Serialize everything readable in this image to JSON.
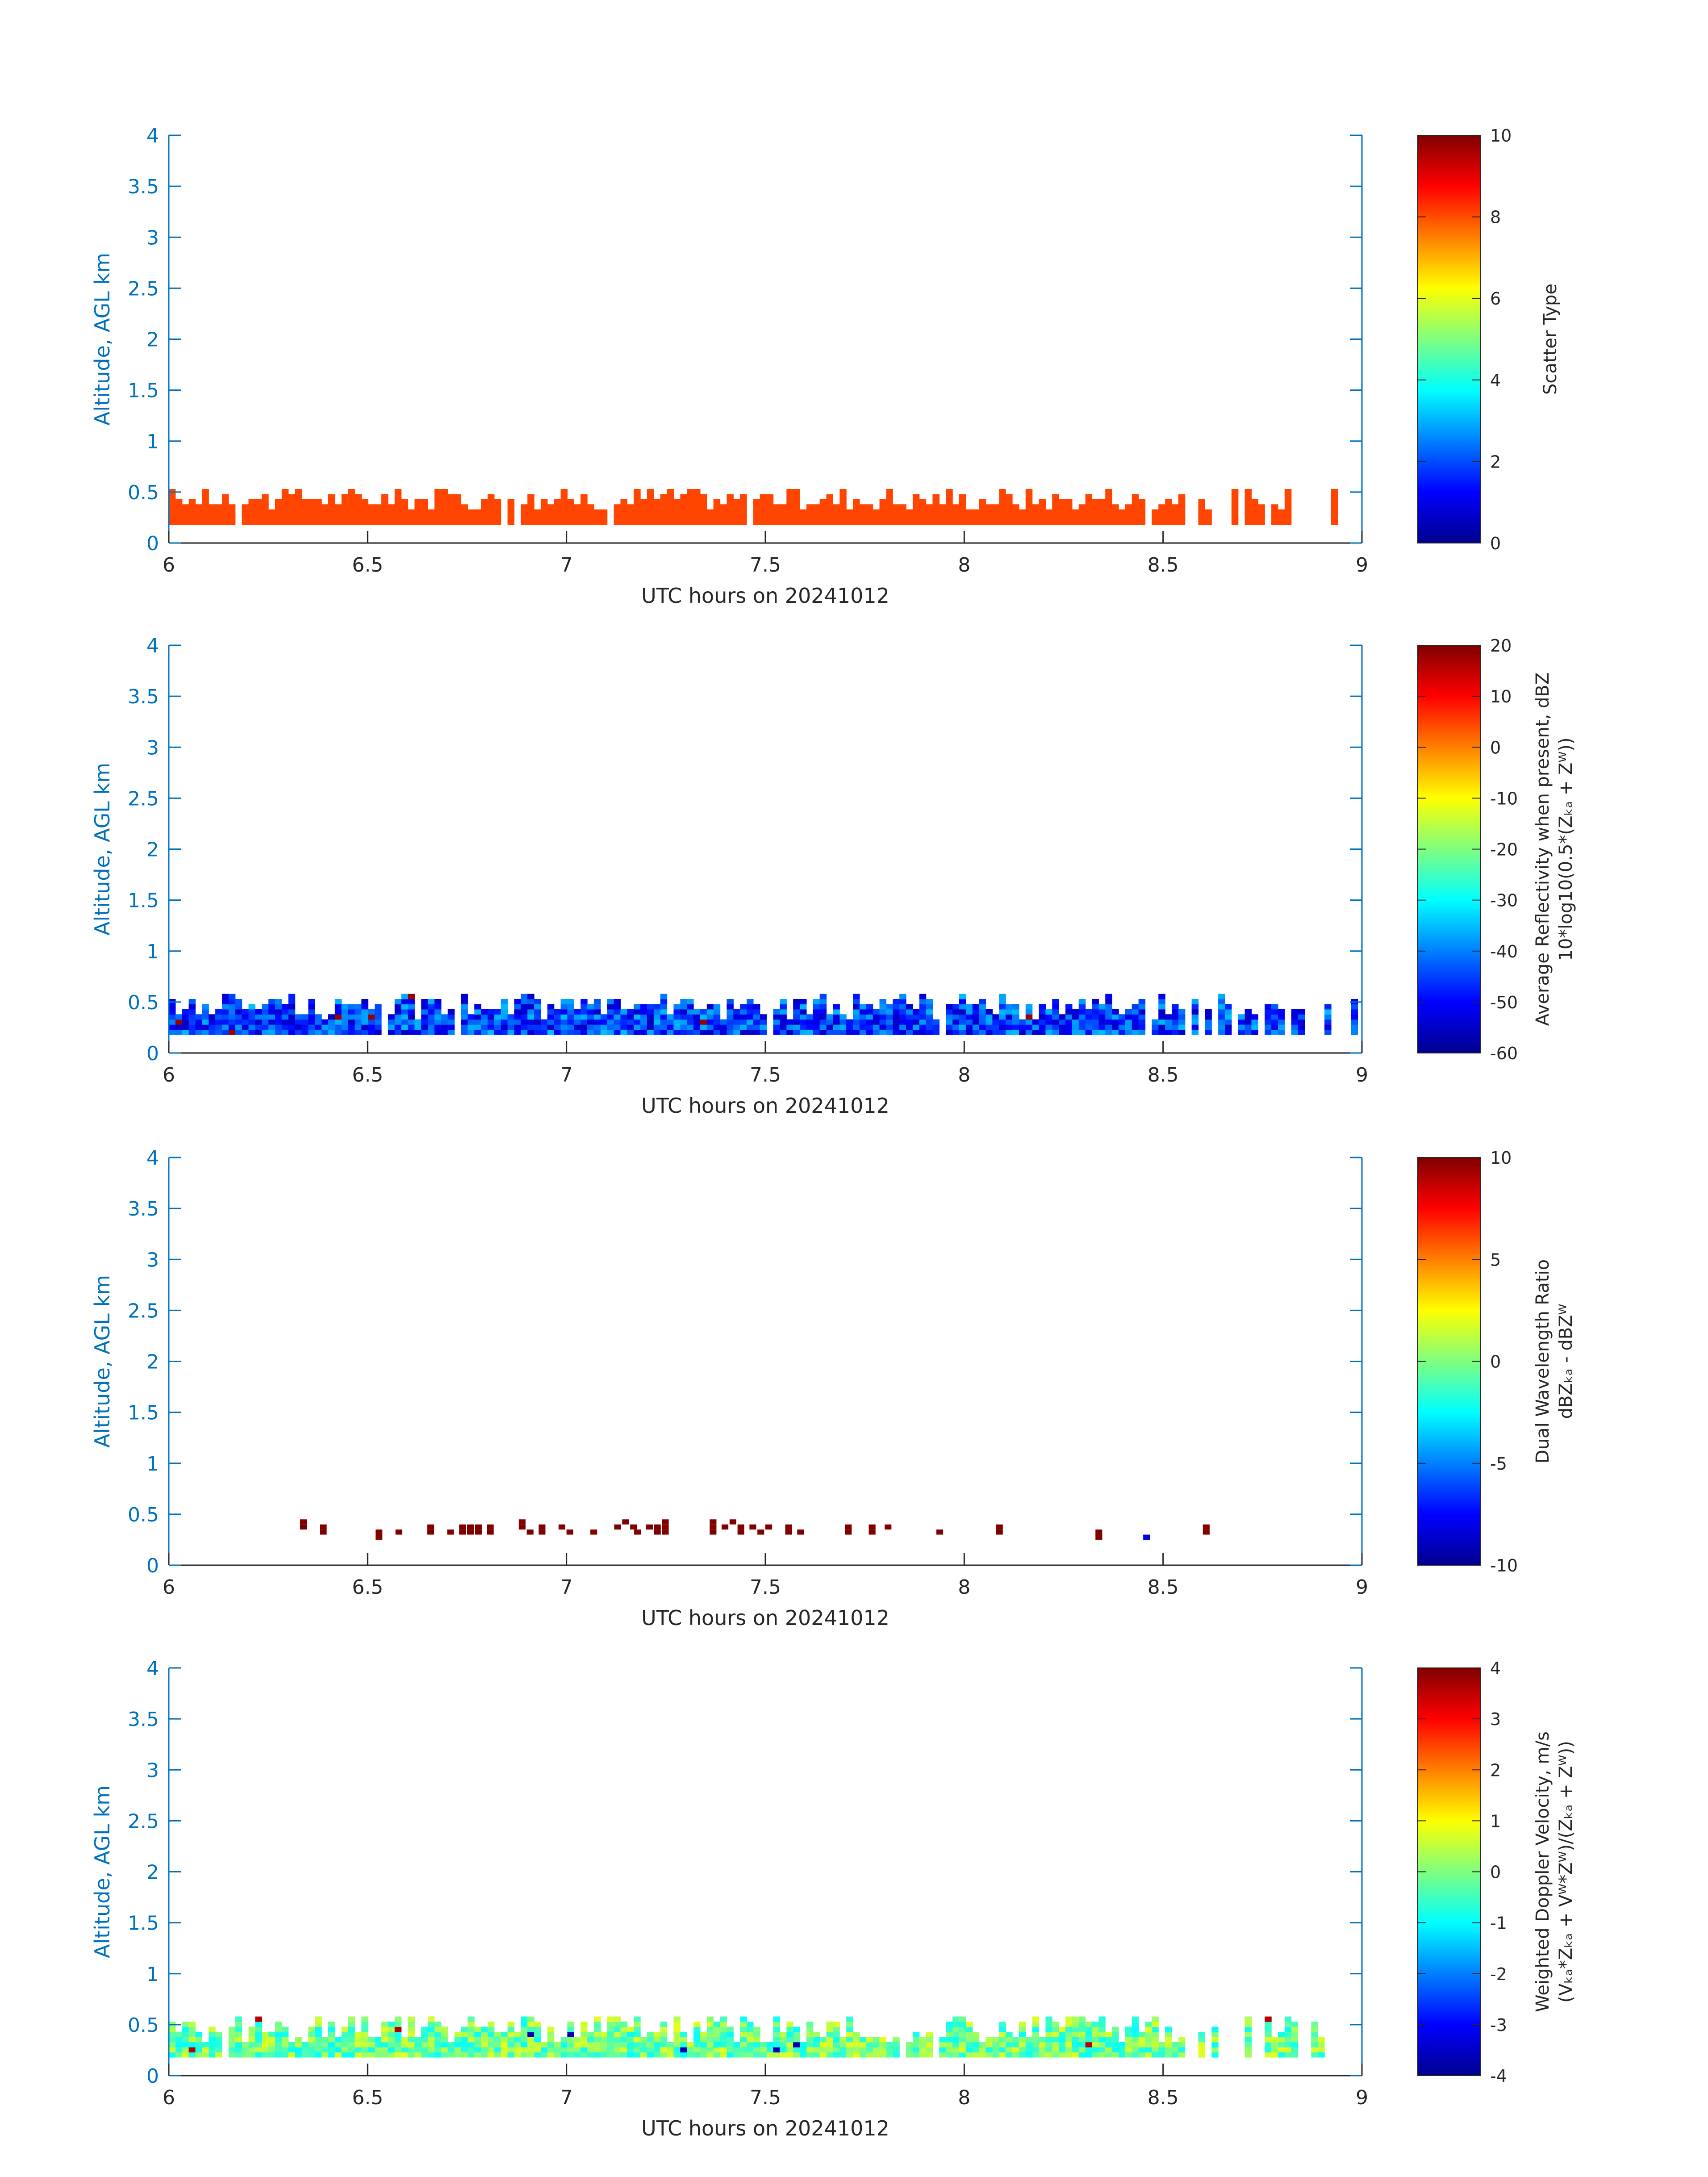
{
  "figure": {
    "background": "#ffffff",
    "axis_color": "#0072bd",
    "text_color": "#262626"
  },
  "chart_data": [
    {
      "type": "heatmap",
      "title": "",
      "xlabel": "UTC hours on 20241012",
      "ylabel": "Altitude, AGL km",
      "xlim": [
        6,
        9
      ],
      "ylim": [
        0,
        4
      ],
      "xticks": [
        "6",
        "6.5",
        "7",
        "7.5",
        "8",
        "8.5",
        "9"
      ],
      "yticks": [
        "0",
        "0.5",
        "1",
        "1.5",
        "2",
        "2.5",
        "3",
        "3.5",
        "4"
      ],
      "colorbar": {
        "label_lines": [
          "Scatter Type"
        ],
        "range": [
          0,
          10
        ],
        "ticks": [
          "0",
          "2",
          "4",
          "6",
          "8",
          "10"
        ]
      },
      "field": {
        "kind": "scatter_type",
        "constant_value": 8,
        "cell_color": "#ff4500",
        "time_step_hours": 0.0167,
        "bin_height_km": 0.05,
        "base_km": 0.18,
        "top_km_range": [
          0.3,
          0.52
        ],
        "gaps_after_hour": 8.55
      }
    },
    {
      "type": "heatmap",
      "title": "",
      "xlabel": "UTC hours on 20241012",
      "ylabel": "Altitude, AGL km",
      "xlim": [
        6,
        9
      ],
      "ylim": [
        0,
        4
      ],
      "xticks": [
        "6",
        "6.5",
        "7",
        "7.5",
        "8",
        "8.5",
        "9"
      ],
      "yticks": [
        "0",
        "0.5",
        "1",
        "1.5",
        "2",
        "2.5",
        "3",
        "3.5",
        "4"
      ],
      "colorbar": {
        "label_lines": [
          "Average Reflectivity when present, dBZ",
          "10*log10(0.5*(Zₖₐ + Zᵂ))"
        ],
        "range": [
          -60,
          20
        ],
        "ticks": [
          "-60",
          "-50",
          "-40",
          "-30",
          "-20",
          "-10",
          "0",
          "10",
          "20"
        ]
      },
      "field": {
        "kind": "reflectivity",
        "typical_range_dbz": [
          -55,
          -35
        ],
        "time_step_hours": 0.0167,
        "bin_height_km": 0.05,
        "base_km": 0.18,
        "top_km_range": [
          0.3,
          0.55
        ],
        "gaps_after_hour": 8.55
      }
    },
    {
      "type": "heatmap",
      "title": "",
      "xlabel": "UTC hours on 20241012",
      "ylabel": "Altitude, AGL km",
      "xlim": [
        6,
        9
      ],
      "ylim": [
        0,
        4
      ],
      "xticks": [
        "6",
        "6.5",
        "7",
        "7.5",
        "8",
        "8.5",
        "9"
      ],
      "yticks": [
        "0",
        "0.5",
        "1",
        "1.5",
        "2",
        "2.5",
        "3",
        "3.5",
        "4"
      ],
      "colorbar": {
        "label_lines": [
          "Dual Wavelength Ratio",
          "dBZₖₐ - dBZᵂ"
        ],
        "range": [
          -10,
          10
        ],
        "ticks": [
          "-10",
          "-5",
          "0",
          "5",
          "10"
        ]
      },
      "field": {
        "kind": "dual_wavelength_ratio",
        "cells": [
          {
            "t": 6.33,
            "z": 0.45,
            "v": 10
          },
          {
            "t": 6.33,
            "z": 0.4,
            "v": 10
          },
          {
            "t": 6.38,
            "z": 0.4,
            "v": 10
          },
          {
            "t": 6.38,
            "z": 0.35,
            "v": 10
          },
          {
            "t": 6.52,
            "z": 0.35,
            "v": 10
          },
          {
            "t": 6.52,
            "z": 0.3,
            "v": 10
          },
          {
            "t": 6.57,
            "z": 0.35,
            "v": 10
          },
          {
            "t": 6.65,
            "z": 0.4,
            "v": 10
          },
          {
            "t": 6.65,
            "z": 0.35,
            "v": 10
          },
          {
            "t": 6.7,
            "z": 0.35,
            "v": 10
          },
          {
            "t": 6.73,
            "z": 0.4,
            "v": 10
          },
          {
            "t": 6.73,
            "z": 0.35,
            "v": 10
          },
          {
            "t": 6.75,
            "z": 0.4,
            "v": 10
          },
          {
            "t": 6.75,
            "z": 0.35,
            "v": 10
          },
          {
            "t": 6.77,
            "z": 0.4,
            "v": 10
          },
          {
            "t": 6.77,
            "z": 0.35,
            "v": 10
          },
          {
            "t": 6.8,
            "z": 0.4,
            "v": 10
          },
          {
            "t": 6.8,
            "z": 0.35,
            "v": 10
          },
          {
            "t": 6.88,
            "z": 0.45,
            "v": 10
          },
          {
            "t": 6.88,
            "z": 0.4,
            "v": 10
          },
          {
            "t": 6.9,
            "z": 0.35,
            "v": 10
          },
          {
            "t": 6.93,
            "z": 0.4,
            "v": 10
          },
          {
            "t": 6.93,
            "z": 0.35,
            "v": 10
          },
          {
            "t": 6.98,
            "z": 0.4,
            "v": 10
          },
          {
            "t": 7.0,
            "z": 0.35,
            "v": 10
          },
          {
            "t": 7.06,
            "z": 0.35,
            "v": 10
          },
          {
            "t": 7.12,
            "z": 0.4,
            "v": 10
          },
          {
            "t": 7.14,
            "z": 0.45,
            "v": 10
          },
          {
            "t": 7.16,
            "z": 0.4,
            "v": 10
          },
          {
            "t": 7.17,
            "z": 0.35,
            "v": 10
          },
          {
            "t": 7.2,
            "z": 0.4,
            "v": 10
          },
          {
            "t": 7.22,
            "z": 0.4,
            "v": 10
          },
          {
            "t": 7.22,
            "z": 0.35,
            "v": 10
          },
          {
            "t": 7.24,
            "z": 0.45,
            "v": 10
          },
          {
            "t": 7.24,
            "z": 0.4,
            "v": 10
          },
          {
            "t": 7.24,
            "z": 0.35,
            "v": 10
          },
          {
            "t": 7.36,
            "z": 0.45,
            "v": 10
          },
          {
            "t": 7.36,
            "z": 0.4,
            "v": 10
          },
          {
            "t": 7.36,
            "z": 0.35,
            "v": 10
          },
          {
            "t": 7.39,
            "z": 0.4,
            "v": 10
          },
          {
            "t": 7.41,
            "z": 0.45,
            "v": 10
          },
          {
            "t": 7.43,
            "z": 0.4,
            "v": 10
          },
          {
            "t": 7.43,
            "z": 0.35,
            "v": 10
          },
          {
            "t": 7.46,
            "z": 0.4,
            "v": 10
          },
          {
            "t": 7.48,
            "z": 0.35,
            "v": 10
          },
          {
            "t": 7.5,
            "z": 0.4,
            "v": 10
          },
          {
            "t": 7.55,
            "z": 0.4,
            "v": 10
          },
          {
            "t": 7.55,
            "z": 0.35,
            "v": 10
          },
          {
            "t": 7.58,
            "z": 0.35,
            "v": 10
          },
          {
            "t": 7.7,
            "z": 0.4,
            "v": 10
          },
          {
            "t": 7.7,
            "z": 0.35,
            "v": 10
          },
          {
            "t": 7.76,
            "z": 0.4,
            "v": 10
          },
          {
            "t": 7.76,
            "z": 0.35,
            "v": 10
          },
          {
            "t": 7.8,
            "z": 0.4,
            "v": 10
          },
          {
            "t": 7.93,
            "z": 0.35,
            "v": 10
          },
          {
            "t": 8.08,
            "z": 0.4,
            "v": 10
          },
          {
            "t": 8.08,
            "z": 0.35,
            "v": 10
          },
          {
            "t": 8.33,
            "z": 0.35,
            "v": 10
          },
          {
            "t": 8.33,
            "z": 0.3,
            "v": 10
          },
          {
            "t": 8.45,
            "z": 0.3,
            "v": -8
          },
          {
            "t": 8.6,
            "z": 0.4,
            "v": 10
          },
          {
            "t": 8.6,
            "z": 0.35,
            "v": 10
          }
        ]
      }
    },
    {
      "type": "heatmap",
      "title": "",
      "xlabel": "UTC hours on 20241012",
      "ylabel": "Altitude, AGL km",
      "xlim": [
        6,
        9
      ],
      "ylim": [
        0,
        4
      ],
      "xticks": [
        "6",
        "6.5",
        "7",
        "7.5",
        "8",
        "8.5",
        "9"
      ],
      "yticks": [
        "0",
        "0.5",
        "1",
        "1.5",
        "2",
        "2.5",
        "3",
        "3.5",
        "4"
      ],
      "colorbar": {
        "label_lines": [
          "Weighted Doppler Velocity, m/s",
          "(Vₖₐ*Zₖₐ + Vᵂ*Zᵂ)/(Zₖₐ + Zᵂ))"
        ],
        "range": [
          -4,
          4
        ],
        "ticks": [
          "-4",
          "-3",
          "-2",
          "-1",
          "0",
          "1",
          "2",
          "3",
          "4"
        ]
      },
      "field": {
        "kind": "doppler_velocity",
        "typical_range_ms": [
          -1,
          0.8
        ],
        "time_step_hours": 0.0167,
        "bin_height_km": 0.05,
        "base_km": 0.18,
        "top_km_range": [
          0.3,
          0.58
        ],
        "gaps_after_hour": 8.55
      }
    }
  ]
}
